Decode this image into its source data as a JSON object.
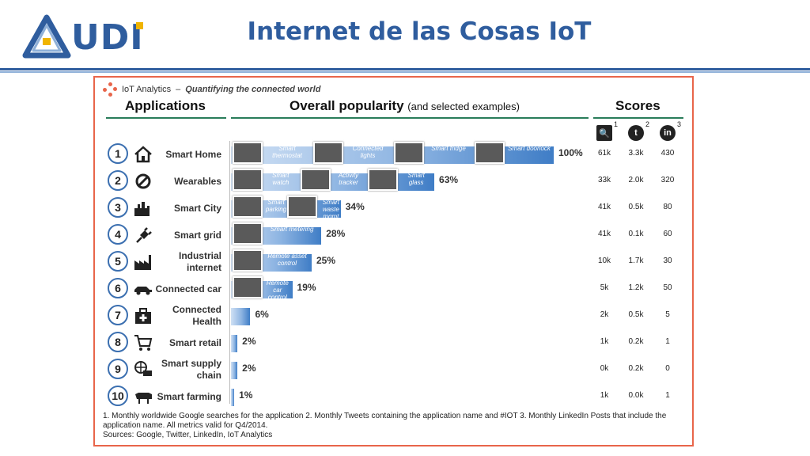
{
  "slide": {
    "title": "Internet de las Cosas IoT",
    "logo_text": "UDI"
  },
  "infographic": {
    "brand_name": "IoT Analytics",
    "brand_sep": "–",
    "brand_tagline": "Quantifying the connected world",
    "header_applications": "Applications",
    "header_popularity": "Overall popularity",
    "header_popularity_sub": "(and selected examples)",
    "header_scores": "Scores",
    "score_columns": [
      {
        "icon": "search-icon",
        "glyph": "🔍",
        "sup": "1"
      },
      {
        "icon": "twitter-icon",
        "glyph": "t",
        "sup": "2"
      },
      {
        "icon": "linkedin-icon",
        "glyph": "in",
        "sup": "3"
      }
    ],
    "footnote_1": "1. Monthly worldwide Google searches for the application  2. Monthly Tweets containing the application name and #IOT  3. Monthly LinkedIn Posts that include the application name.  All metrics valid for Q4/2014.",
    "footnote_2": "Sources: Google, Twitter, LinkedIn, IoT Analytics"
  },
  "chart_data": {
    "type": "bar",
    "orientation": "horizontal",
    "unit": "%",
    "xlim": [
      0,
      100
    ],
    "categories": [
      "Smart Home",
      "Wearables",
      "Smart City",
      "Smart grid",
      "Industrial internet",
      "Connected car",
      "Connected Health",
      "Smart retail",
      "Smart supply chain",
      "Smart farming"
    ],
    "values": [
      100,
      63,
      34,
      28,
      25,
      19,
      6,
      2,
      2,
      1
    ],
    "value_labels": [
      "100%",
      "63%",
      "34%",
      "28%",
      "25%",
      "19%",
      "6%",
      "2%",
      "2%",
      "1%"
    ],
    "ranks": [
      "1",
      "2",
      "3",
      "4",
      "5",
      "6",
      "7",
      "8",
      "9",
      "10"
    ],
    "icons": [
      "house-icon",
      "wearable-icon",
      "city-icon",
      "plug-icon",
      "factory-icon",
      "car-icon",
      "medical-kit-icon",
      "shopping-cart-icon",
      "supply-chain-icon",
      "cow-icon"
    ],
    "examples": [
      [
        "Smart thermostat",
        "Connected lights",
        "Smart fridge",
        "Smart doorlock"
      ],
      [
        "Smart watch",
        "Activity tracker",
        "Smart glass"
      ],
      [
        "Smart parking",
        "Smart waste mgmt"
      ],
      [
        "Smart metering"
      ],
      [
        "Remote asset control"
      ],
      [
        "Remote car control"
      ],
      [],
      [],
      [],
      []
    ],
    "scores": {
      "google_searches": [
        "61k",
        "33k",
        "41k",
        "41k",
        "10k",
        "5k",
        "2k",
        "1k",
        "0k",
        "1k"
      ],
      "tweets": [
        "3.3k",
        "2.0k",
        "0.5k",
        "0.1k",
        "1.7k",
        "1.2k",
        "0.5k",
        "0.2k",
        "0.2k",
        "0.0k"
      ],
      "linkedin_posts": [
        "430",
        "320",
        "80",
        "60",
        "30",
        "50",
        "5",
        "1",
        "0",
        "1"
      ]
    }
  }
}
